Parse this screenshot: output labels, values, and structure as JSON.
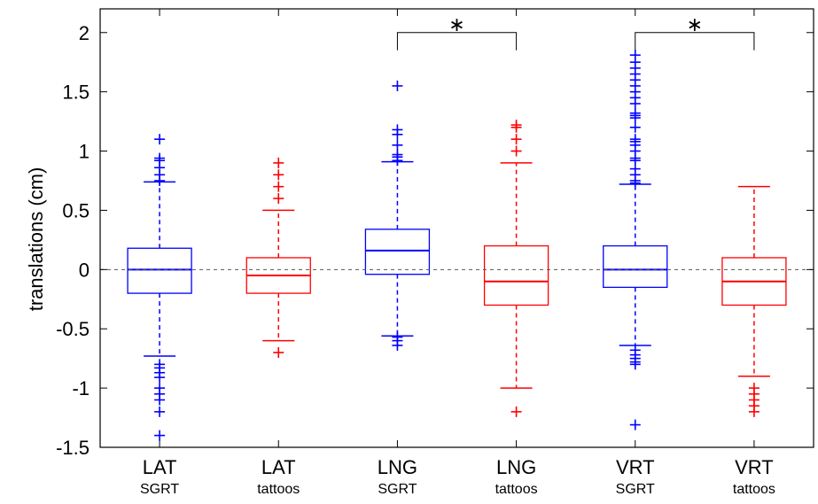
{
  "chart_data": {
    "type": "box",
    "ylabel": "translations (cm)",
    "ylim": [
      -1.5,
      2.2
    ],
    "yticks": [
      "2",
      "1.5",
      "1",
      "0.5",
      "0",
      "-0.5",
      "-1",
      "-1.5"
    ],
    "ytick_values": [
      2,
      1.5,
      1,
      0.5,
      0,
      -0.5,
      -1,
      -1.5
    ],
    "reference_line": 0,
    "grid": false,
    "colors": {
      "SGRT": "#0000ff",
      "tattoos": "#ff0000",
      "axis": "#000000",
      "reference": "#555555"
    },
    "boxes": [
      {
        "label": "LAT",
        "sublabel": "SGRT",
        "group": "SGRT",
        "q1": -0.2,
        "median": 0.0,
        "q3": 0.18,
        "whisker_low": -0.73,
        "whisker_high": 0.74,
        "outliers": [
          0.75,
          0.8,
          0.86,
          0.92,
          0.94,
          1.1,
          -0.8,
          -0.83,
          -0.87,
          -0.91,
          -1.0,
          -1.05,
          -1.1,
          -1.2,
          -1.4
        ]
      },
      {
        "label": "LAT",
        "sublabel": "tattoos",
        "group": "tattoos",
        "q1": -0.2,
        "median": -0.05,
        "q3": 0.1,
        "whisker_low": -0.6,
        "whisker_high": 0.5,
        "outliers": [
          0.6,
          0.7,
          0.8,
          0.9,
          -0.7
        ]
      },
      {
        "label": "LNG",
        "sublabel": "SGRT",
        "group": "SGRT",
        "q1": -0.04,
        "median": 0.16,
        "q3": 0.34,
        "whisker_low": -0.56,
        "whisker_high": 0.91,
        "outliers": [
          0.92,
          0.95,
          0.97,
          1.05,
          1.14,
          1.18,
          1.55,
          -0.57,
          -0.6,
          -0.64
        ]
      },
      {
        "label": "LNG",
        "sublabel": "tattoos",
        "group": "tattoos",
        "q1": -0.3,
        "median": -0.1,
        "q3": 0.2,
        "whisker_low": -1.0,
        "whisker_high": 0.9,
        "outliers": [
          1.0,
          1.1,
          1.2,
          1.22,
          -1.2
        ]
      },
      {
        "label": "VRT",
        "sublabel": "SGRT",
        "group": "SGRT",
        "q1": -0.15,
        "median": 0.0,
        "q3": 0.2,
        "whisker_low": -0.64,
        "whisker_high": 0.72,
        "outliers": [
          0.73,
          0.75,
          0.8,
          0.85,
          0.92,
          0.94,
          1.0,
          1.05,
          1.08,
          1.1,
          1.2,
          1.28,
          1.3,
          1.32,
          1.4,
          1.45,
          1.5,
          1.55,
          1.6,
          1.65,
          1.7,
          1.75,
          1.81,
          -0.68,
          -0.72,
          -0.75,
          -0.78,
          -0.8,
          -1.31
        ]
      },
      {
        "label": "VRT",
        "sublabel": "tattoos",
        "group": "tattoos",
        "q1": -0.3,
        "median": -0.1,
        "q3": 0.1,
        "whisker_low": -0.9,
        "whisker_high": 0.7,
        "outliers": [
          -1.0,
          -1.05,
          -1.1,
          -1.15,
          -1.2
        ]
      }
    ],
    "significance": [
      {
        "from_box": 2,
        "to_box": 3,
        "marker": "∗",
        "level": 2.0
      },
      {
        "from_box": 4,
        "to_box": 5,
        "marker": "∗",
        "level": 2.0
      }
    ]
  }
}
